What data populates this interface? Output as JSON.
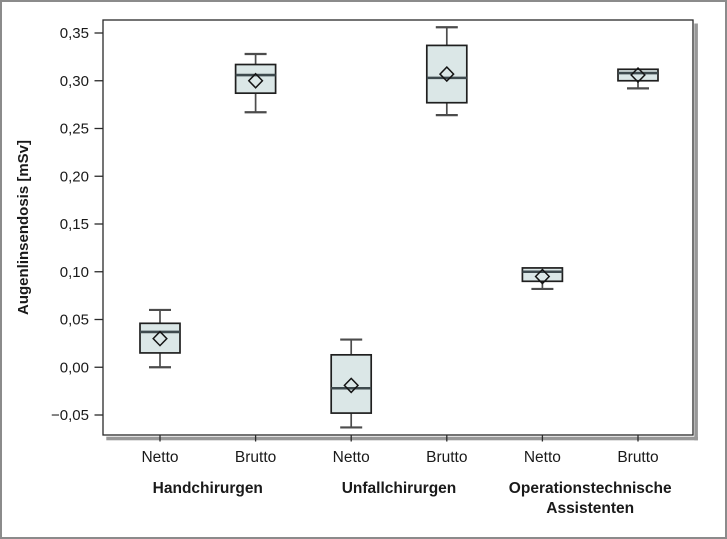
{
  "figure": {
    "background_color": "#ffffff",
    "outer_border_color": "#8b8b8b"
  },
  "chart_data": {
    "type": "boxplot",
    "title": "",
    "ylabel": "Augenlinsendosis [mSv]",
    "xlabel": "",
    "unit": "mSv",
    "ylim": [
      -0.08,
      0.375
    ],
    "grid": false,
    "legend_position": "none",
    "mean_marker": "open-diamond",
    "decimal_style": "comma",
    "yticks": [
      {
        "value": 0.35,
        "label": "0,35"
      },
      {
        "value": 0.3,
        "label": "0,30"
      },
      {
        "value": 0.25,
        "label": "0,25"
      },
      {
        "value": 0.2,
        "label": "0,20"
      },
      {
        "value": 0.15,
        "label": "0,15"
      },
      {
        "value": 0.1,
        "label": "0,10"
      },
      {
        "value": 0.05,
        "label": "0,05"
      },
      {
        "value": 0.0,
        "label": "0,00"
      },
      {
        "value": -0.05,
        "label": "−0,05"
      }
    ],
    "x_categories": [
      "Netto",
      "Brutto"
    ],
    "groups": [
      {
        "label": "Handchirurgen",
        "label_lines": [
          "Handchirurgen"
        ],
        "boxes": [
          {
            "category": "Netto",
            "whisker_low": 0.0,
            "q1": 0.015,
            "median": 0.037,
            "mean": 0.03,
            "q3": 0.046,
            "whisker_high": 0.06
          },
          {
            "category": "Brutto",
            "whisker_low": 0.267,
            "q1": 0.287,
            "median": 0.306,
            "mean": 0.3,
            "q3": 0.317,
            "whisker_high": 0.328
          }
        ]
      },
      {
        "label": "Unfallchirurgen",
        "label_lines": [
          "Unfallchirurgen"
        ],
        "boxes": [
          {
            "category": "Netto",
            "whisker_low": -0.063,
            "q1": -0.048,
            "median": -0.022,
            "mean": -0.019,
            "q3": 0.013,
            "whisker_high": 0.029
          },
          {
            "category": "Brutto",
            "whisker_low": 0.264,
            "q1": 0.277,
            "median": 0.303,
            "mean": 0.307,
            "q3": 0.337,
            "whisker_high": 0.356
          }
        ]
      },
      {
        "label": "Operationstechnische Assistenten",
        "label_lines": [
          "Operationstechnische",
          "Assistenten"
        ],
        "boxes": [
          {
            "category": "Netto",
            "whisker_low": 0.082,
            "q1": 0.09,
            "median": 0.1,
            "mean": 0.095,
            "q3": 0.104,
            "whisker_high": null
          },
          {
            "category": "Brutto",
            "whisker_low": 0.292,
            "q1": 0.3,
            "median": 0.308,
            "mean": 0.306,
            "q3": 0.312,
            "whisker_high": null
          }
        ]
      }
    ],
    "colors": {
      "box_fill": "#dbe7e7",
      "box_border": "#1f1f1f",
      "median_line": "#3e4a4e",
      "whisker": "#4c4c4c",
      "mean_marker_stroke": "#141414",
      "axis": "#2a2a2a",
      "text": "#1a1a1a",
      "frame_shadow": "#989898"
    }
  }
}
